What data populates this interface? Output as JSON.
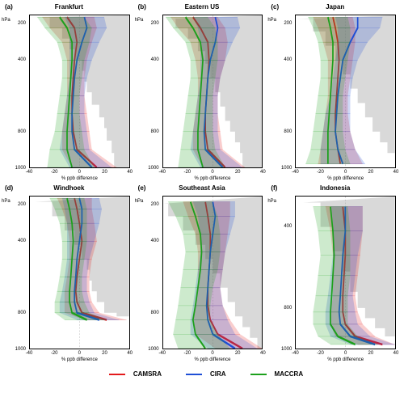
{
  "xlim": [
    -40,
    40
  ],
  "xticks": [
    -40,
    -20,
    0,
    20,
    40
  ],
  "yticks": [
    1000,
    900,
    800,
    700,
    600,
    500,
    400,
    300,
    200
  ],
  "ytick_labels": [
    "1000",
    "",
    "800",
    "",
    "",
    "",
    "400",
    "",
    "200"
  ],
  "xlabel": "% ppb difference",
  "ylabel": "hPa",
  "series_colors": {
    "CAMSRA": "#e31a1c",
    "CIRA": "#1f4fd6",
    "MACCRA": "#1ca01c"
  },
  "band_opacity": 0.22,
  "line_width": 1.4,
  "gray": "#d9d9d9",
  "legend": [
    {
      "name": "CAMSRA",
      "k": "CAMSRA"
    },
    {
      "name": "CIRA",
      "k": "CIRA"
    },
    {
      "name": "MACCRA",
      "k": "MACCRA"
    }
  ],
  "panels": [
    {
      "tag": "(a)",
      "title": "Frankfurt",
      "ymin": 1000,
      "ymax": 150,
      "gray_x": [
        28,
        26,
        22,
        20,
        16,
        10,
        6,
        4,
        2,
        -4,
        -8,
        -14,
        -24,
        -40
      ],
      "gray_y": [
        1000,
        920,
        850,
        780,
        720,
        650,
        580,
        520,
        460,
        400,
        340,
        280,
        220,
        160
      ],
      "lines": {
        "CAMSRA": {
          "x": [
            14,
            -2,
            -5,
            -6,
            -6,
            -5,
            -4,
            -2,
            -4,
            -10
          ],
          "y": [
            1000,
            900,
            800,
            700,
            600,
            500,
            400,
            300,
            220,
            160
          ],
          "lo": [
            -6,
            -14,
            -14,
            -12,
            -10,
            -10,
            -10,
            -14,
            -24,
            -30
          ],
          "hi": [
            30,
            10,
            8,
            6,
            4,
            4,
            6,
            10,
            14,
            12
          ]
        },
        "CIRA": {
          "x": [
            10,
            -4,
            -6,
            -6,
            -5,
            -4,
            -2,
            2,
            6,
            4
          ],
          "y": [
            1000,
            900,
            800,
            700,
            600,
            500,
            400,
            300,
            220,
            160
          ],
          "lo": [
            -8,
            -16,
            -14,
            -12,
            -10,
            -8,
            -8,
            -8,
            -8,
            -12
          ],
          "hi": [
            26,
            8,
            6,
            4,
            4,
            6,
            10,
            16,
            22,
            20
          ]
        },
        "MACCRA": {
          "x": [
            -6,
            -10,
            -10,
            -9,
            -8,
            -7,
            -6,
            -6,
            -10,
            -16
          ],
          "y": [
            1000,
            900,
            800,
            700,
            600,
            500,
            400,
            300,
            220,
            160
          ],
          "lo": [
            -26,
            -24,
            -20,
            -18,
            -16,
            -14,
            -14,
            -18,
            -28,
            -34
          ],
          "hi": [
            12,
            4,
            2,
            0,
            0,
            2,
            4,
            8,
            10,
            4
          ]
        }
      }
    },
    {
      "tag": "(b)",
      "title": "Eastern US",
      "ymin": 1000,
      "ymax": 150,
      "gray_x": [
        24,
        22,
        18,
        14,
        10,
        6,
        2,
        -2,
        -6,
        -12,
        -20,
        -30,
        -40
      ],
      "gray_y": [
        1000,
        920,
        860,
        800,
        740,
        660,
        580,
        500,
        420,
        350,
        280,
        220,
        170
      ],
      "lines": {
        "CAMSRA": {
          "x": [
            10,
            -4,
            -6,
            -6,
            -5,
            -4,
            -3,
            -4,
            -10,
            -16
          ],
          "y": [
            1000,
            900,
            800,
            700,
            600,
            500,
            400,
            300,
            220,
            160
          ],
          "lo": [
            -8,
            -16,
            -16,
            -14,
            -12,
            -12,
            -14,
            -18,
            -28,
            -34
          ],
          "hi": [
            26,
            8,
            6,
            4,
            4,
            6,
            10,
            12,
            10,
            4
          ]
        },
        "CIRA": {
          "x": [
            8,
            -6,
            -7,
            -6,
            -5,
            -4,
            -2,
            2,
            4,
            2
          ],
          "y": [
            1000,
            900,
            800,
            700,
            600,
            500,
            400,
            300,
            220,
            160
          ],
          "lo": [
            -10,
            -18,
            -16,
            -14,
            -12,
            -10,
            -10,
            -10,
            -12,
            -16
          ],
          "hi": [
            24,
            6,
            4,
            4,
            4,
            6,
            10,
            16,
            22,
            20
          ]
        },
        "MACCRA": {
          "x": [
            -8,
            -12,
            -12,
            -11,
            -10,
            -9,
            -8,
            -10,
            -16,
            -22
          ],
          "y": [
            1000,
            900,
            800,
            700,
            600,
            500,
            400,
            300,
            220,
            160
          ],
          "lo": [
            -28,
            -26,
            -24,
            -22,
            -20,
            -18,
            -18,
            -22,
            -32,
            -38
          ],
          "hi": [
            10,
            2,
            0,
            0,
            0,
            2,
            4,
            4,
            2,
            -4
          ]
        }
      }
    },
    {
      "tag": "(c)",
      "title": "Japan",
      "ymin": 1000,
      "ymax": 150,
      "gray_x": [
        40,
        34,
        28,
        22,
        16,
        10,
        4,
        -2,
        -8,
        -16,
        -26,
        -40
      ],
      "gray_y": [
        980,
        920,
        860,
        800,
        720,
        640,
        560,
        480,
        400,
        320,
        240,
        170
      ],
      "lines": {
        "CAMSRA": {
          "x": [
            -4,
            -6,
            -8,
            -8,
            -7,
            -6,
            -5,
            -6,
            -8,
            -10
          ],
          "y": [
            980,
            900,
            800,
            700,
            600,
            500,
            400,
            300,
            220,
            160
          ],
          "lo": [
            -22,
            -20,
            -18,
            -16,
            -14,
            -14,
            -14,
            -18,
            -22,
            -26
          ],
          "hi": [
            14,
            8,
            4,
            2,
            2,
            4,
            6,
            8,
            8,
            6
          ]
        },
        "CIRA": {
          "x": [
            -2,
            -6,
            -8,
            -7,
            -6,
            -4,
            -2,
            4,
            10,
            10
          ],
          "y": [
            980,
            900,
            800,
            700,
            600,
            500,
            400,
            300,
            220,
            160
          ],
          "lo": [
            -20,
            -20,
            -18,
            -16,
            -12,
            -10,
            -8,
            -6,
            -6,
            -8
          ],
          "hi": [
            16,
            8,
            4,
            4,
            4,
            6,
            10,
            18,
            28,
            30
          ]
        },
        "MACCRA": {
          "x": [
            -14,
            -14,
            -14,
            -13,
            -12,
            -11,
            -10,
            -10,
            -12,
            -14
          ],
          "y": [
            980,
            900,
            800,
            700,
            600,
            500,
            400,
            300,
            220,
            160
          ],
          "lo": [
            -32,
            -28,
            -26,
            -24,
            -22,
            -20,
            -20,
            -22,
            -26,
            -30
          ],
          "hi": [
            4,
            0,
            -2,
            -2,
            -2,
            0,
            2,
            4,
            4,
            2
          ]
        }
      }
    },
    {
      "tag": "(d)",
      "title": "Windhoek",
      "ymin": 1000,
      "ymax": 150,
      "gray_x": [
        40,
        30,
        20,
        14,
        10,
        8,
        6,
        2,
        -4,
        -12,
        -22,
        -36
      ],
      "gray_y": [
        840,
        820,
        800,
        740,
        680,
        620,
        560,
        500,
        420,
        340,
        260,
        180
      ],
      "lines": {
        "CAMSRA": {
          "x": [
            22,
            2,
            -2,
            -3,
            -2,
            0,
            2,
            0,
            -2,
            -4
          ],
          "y": [
            840,
            800,
            740,
            680,
            600,
            500,
            400,
            300,
            220,
            160
          ],
          "lo": [
            4,
            -12,
            -12,
            -12,
            -10,
            -8,
            -8,
            -10,
            -14,
            -18
          ],
          "hi": [
            38,
            16,
            10,
            8,
            8,
            10,
            14,
            12,
            10,
            10
          ]
        },
        "CIRA": {
          "x": [
            16,
            -2,
            -4,
            -4,
            -3,
            -2,
            0,
            2,
            2,
            0
          ],
          "y": [
            840,
            800,
            740,
            680,
            600,
            500,
            400,
            300,
            220,
            160
          ],
          "lo": [
            -2,
            -16,
            -16,
            -14,
            -12,
            -10,
            -10,
            -10,
            -12,
            -14
          ],
          "hi": [
            32,
            12,
            8,
            6,
            6,
            8,
            12,
            16,
            18,
            16
          ]
        },
        "MACCRA": {
          "x": [
            6,
            -6,
            -8,
            -8,
            -7,
            -6,
            -5,
            -6,
            -8,
            -10
          ],
          "y": [
            840,
            800,
            740,
            680,
            600,
            500,
            400,
            300,
            220,
            160
          ],
          "lo": [
            -12,
            -20,
            -20,
            -18,
            -16,
            -14,
            -14,
            -16,
            -20,
            -24
          ],
          "hi": [
            22,
            8,
            4,
            2,
            2,
            4,
            6,
            6,
            6,
            4
          ]
        }
      }
    },
    {
      "tag": "(e)",
      "title": "Southeast Asia",
      "ymin": 1000,
      "ymax": 150,
      "gray_x": [
        36,
        30,
        24,
        18,
        12,
        6,
        0,
        -6,
        -14,
        -24,
        -36,
        -40
      ],
      "gray_y": [
        1000,
        940,
        880,
        820,
        740,
        660,
        580,
        500,
        420,
        340,
        260,
        190
      ],
      "lines": {
        "CAMSRA": {
          "x": [
            24,
            4,
            -2,
            -4,
            -4,
            -3,
            -2,
            -2,
            -4,
            -6
          ],
          "y": [
            1000,
            920,
            840,
            760,
            660,
            560,
            460,
            360,
            260,
            180
          ],
          "lo": [
            2,
            -14,
            -16,
            -14,
            -12,
            -12,
            -12,
            -14,
            -20,
            -24
          ],
          "hi": [
            40,
            22,
            14,
            8,
            6,
            8,
            10,
            12,
            14,
            14
          ]
        },
        "CIRA": {
          "x": [
            18,
            0,
            -4,
            -5,
            -4,
            -3,
            -2,
            0,
            2,
            0
          ],
          "y": [
            1000,
            920,
            840,
            760,
            660,
            560,
            460,
            360,
            260,
            180
          ],
          "lo": [
            -4,
            -18,
            -18,
            -16,
            -14,
            -12,
            -10,
            -10,
            -12,
            -16
          ],
          "hi": [
            36,
            18,
            12,
            8,
            6,
            8,
            10,
            14,
            18,
            18
          ]
        },
        "MACCRA": {
          "x": [
            -6,
            -14,
            -16,
            -14,
            -12,
            -10,
            -9,
            -10,
            -14,
            -18
          ],
          "y": [
            1000,
            920,
            840,
            760,
            660,
            560,
            460,
            360,
            260,
            180
          ],
          "lo": [
            -28,
            -32,
            -30,
            -28,
            -26,
            -24,
            -22,
            -24,
            -30,
            -36
          ],
          "hi": [
            14,
            4,
            -2,
            -2,
            0,
            4,
            6,
            6,
            4,
            0
          ]
        }
      }
    },
    {
      "tag": "(f)",
      "title": "Indonesia",
      "ymin": 1000,
      "ymax": 250,
      "gray_x": [
        40,
        32,
        24,
        16,
        10,
        4,
        -2,
        -10,
        -20,
        -34
      ],
      "gray_y": [
        980,
        940,
        900,
        850,
        800,
        720,
        620,
        520,
        400,
        280
      ],
      "lines": {
        "CAMSRA": {
          "x": [
            30,
            8,
            0,
            -2,
            -2,
            -1,
            0,
            0,
            -2
          ],
          "y": [
            980,
            940,
            880,
            820,
            740,
            640,
            540,
            420,
            300
          ],
          "lo": [
            10,
            -8,
            -12,
            -12,
            -10,
            -10,
            -10,
            -12,
            -16
          ],
          "hi": [
            40,
            24,
            14,
            10,
            8,
            10,
            12,
            14,
            14
          ]
        },
        "CIRA": {
          "x": [
            24,
            4,
            -4,
            -5,
            -4,
            -3,
            -2,
            0,
            0
          ],
          "y": [
            980,
            940,
            880,
            820,
            740,
            640,
            540,
            420,
            300
          ],
          "lo": [
            4,
            -12,
            -16,
            -16,
            -14,
            -12,
            -10,
            -10,
            -12
          ],
          "hi": [
            40,
            20,
            10,
            8,
            6,
            8,
            10,
            14,
            14
          ]
        },
        "MACCRA": {
          "x": [
            8,
            -6,
            -12,
            -12,
            -11,
            -10,
            -9,
            -10,
            -12
          ],
          "y": [
            980,
            940,
            880,
            820,
            740,
            640,
            540,
            420,
            300
          ],
          "lo": [
            -12,
            -22,
            -26,
            -26,
            -24,
            -22,
            -20,
            -22,
            -26
          ],
          "hi": [
            26,
            10,
            2,
            2,
            2,
            4,
            4,
            4,
            2
          ]
        }
      }
    }
  ]
}
